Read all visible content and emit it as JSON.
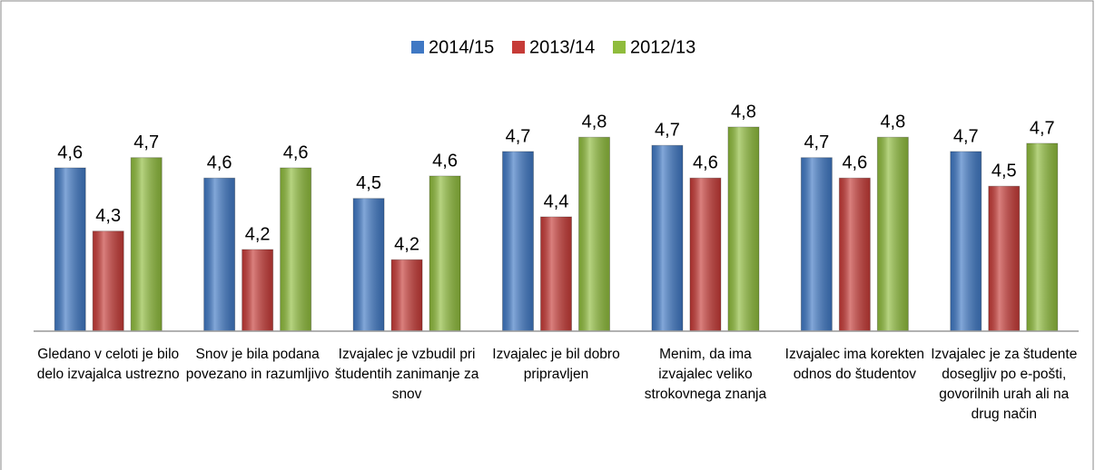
{
  "chart_data": {
    "type": "bar",
    "categories": [
      "Gledano v celoti je bilo delo izvajalca ustrezno",
      "Snov je bila podana povezano in razumljivo",
      "Izvajalec je vzbudil pri študentih zanimanje za snov",
      "Izvajalec je bil dobro pripravljen",
      "Menim, da ima izvajalec veliko strokovnega znanja",
      "Izvajalec ima korekten odnos do študentov",
      "Izvajalec je za študente dosegljiv po e-pošti, govorilnih urah ali na drug način"
    ],
    "series": [
      {
        "name": "2014/15",
        "color": "#3f78c4",
        "values": [
          4.6,
          4.55,
          4.45,
          4.68,
          4.71,
          4.65,
          4.68
        ],
        "value_labels": [
          "4,6",
          "4,6",
          "4,5",
          "4,7",
          "4,7",
          "4,7",
          "4,7"
        ]
      },
      {
        "name": "2013/14",
        "color": "#c63b37",
        "values": [
          4.29,
          4.2,
          4.15,
          4.36,
          4.55,
          4.55,
          4.51
        ],
        "value_labels": [
          "4,3",
          "4,2",
          "4,2",
          "4,4",
          "4,6",
          "4,6",
          "4,5"
        ]
      },
      {
        "name": "2012/13",
        "color": "#8fbc3c",
        "values": [
          4.65,
          4.6,
          4.56,
          4.75,
          4.8,
          4.75,
          4.72
        ],
        "value_labels": [
          "4,7",
          "4,6",
          "4,6",
          "4,8",
          "4,8",
          "4,8",
          "4,7"
        ]
      }
    ],
    "ylim": [
      3.8,
      5.0
    ],
    "legend": "top"
  }
}
